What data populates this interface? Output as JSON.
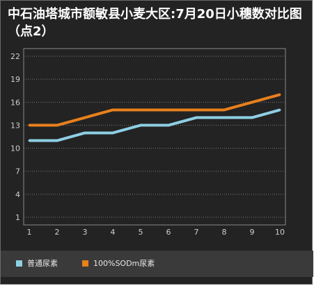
{
  "chart_data": {
    "type": "line",
    "title": "中石油塔城市额敏县小麦大区:7月20日小穗数对比图（点2）",
    "xlabel": "",
    "ylabel": "",
    "x": [
      1,
      2,
      3,
      4,
      5,
      6,
      7,
      8,
      9,
      10
    ],
    "x_ticks": [
      "1",
      "2",
      "3",
      "4",
      "5",
      "6",
      "7",
      "8",
      "9",
      "10"
    ],
    "y_ticks": [
      "1",
      "4",
      "7",
      "10",
      "13",
      "16",
      "19",
      "22"
    ],
    "ylim": [
      0,
      23
    ],
    "grid": "horizontal dotted",
    "legend_position": "bottom",
    "series": [
      {
        "name": "普通尿素",
        "color": "#8ecfe4",
        "values": [
          11,
          11,
          12,
          12,
          13,
          13,
          14,
          14,
          14,
          15
        ]
      },
      {
        "name": "100%SODm尿素",
        "color": "#e8801c",
        "values": [
          13,
          13,
          14,
          15,
          15,
          15,
          15,
          15,
          16,
          17
        ]
      }
    ]
  }
}
